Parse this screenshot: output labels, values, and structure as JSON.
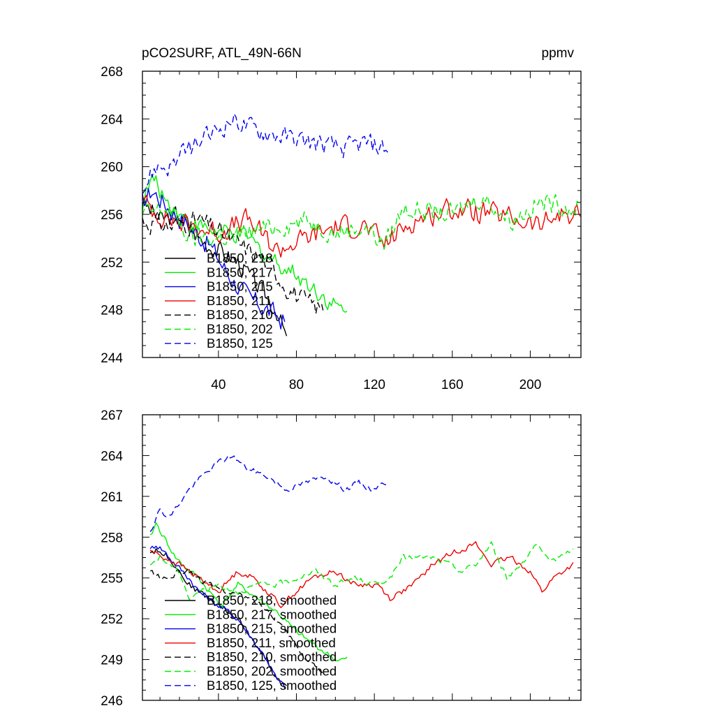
{
  "chart_data": [
    {
      "type": "line",
      "title": "pCO2SURF, ATL_49N-66N",
      "units": "ppmv",
      "xlabel": "",
      "ylabel": "",
      "xlim": [
        1,
        226
      ],
      "ylim": [
        244,
        268
      ],
      "xticks": [
        40,
        80,
        120,
        160,
        200
      ],
      "xtick_labels": [
        "40",
        "80",
        "120",
        "160",
        "200"
      ],
      "yticks": [
        244,
        248,
        252,
        256,
        260,
        264,
        268
      ],
      "ytick_labels": [
        "244",
        "248",
        "252",
        "256",
        "260",
        "264",
        "268"
      ],
      "legend_position": "lower-left",
      "series": [
        {
          "name": "B1850, 218",
          "color": "#000000",
          "dash": "solid",
          "x_end": 75,
          "anchors": [
            [
              1,
              257
            ],
            [
              10,
              255.5
            ],
            [
              20,
              256
            ],
            [
              30,
              254
            ],
            [
              40,
              253
            ],
            [
              50,
              252
            ],
            [
              60,
              250
            ],
            [
              70,
              248
            ],
            [
              75,
              245.5
            ]
          ],
          "noise": 1.2
        },
        {
          "name": "B1850, 217",
          "color": "#00ee00",
          "dash": "solid",
          "x_end": 106,
          "anchors": [
            [
              1,
              257
            ],
            [
              6,
              259
            ],
            [
              12,
              257.5
            ],
            [
              20,
              256
            ],
            [
              30,
              255
            ],
            [
              40,
              254.5
            ],
            [
              55,
              254
            ],
            [
              65,
              252.5
            ],
            [
              80,
              251
            ],
            [
              95,
              249
            ],
            [
              106,
              247.5
            ]
          ],
          "noise": 1.1
        },
        {
          "name": "B1850, 215",
          "color": "#0000ee",
          "dash": "solid",
          "x_end": 74,
          "anchors": [
            [
              1,
              257
            ],
            [
              6,
              258
            ],
            [
              15,
              256.5
            ],
            [
              25,
              255
            ],
            [
              35,
              253.5
            ],
            [
              45,
              251
            ],
            [
              55,
              249
            ],
            [
              65,
              248
            ],
            [
              74,
              247
            ]
          ],
          "noise": 1.3
        },
        {
          "name": "B1850, 211",
          "color": "#ee0000",
          "dash": "solid",
          "x_end": 226,
          "anchors": [
            [
              1,
              257
            ],
            [
              10,
              256
            ],
            [
              25,
              255
            ],
            [
              40,
              254.5
            ],
            [
              55,
              255.5
            ],
            [
              70,
              253
            ],
            [
              85,
              254
            ],
            [
              100,
              255
            ],
            [
              115,
              255
            ],
            [
              125,
              253.5
            ],
            [
              140,
              255.5
            ],
            [
              160,
              256.5
            ],
            [
              180,
              256
            ],
            [
              195,
              255.5
            ],
            [
              205,
              255
            ],
            [
              215,
              256
            ],
            [
              226,
              256
            ]
          ],
          "noise": 1.3
        },
        {
          "name": "B1850, 210",
          "color": "#000000",
          "dash": "dash",
          "x_end": 94,
          "anchors": [
            [
              1,
              255.5
            ],
            [
              15,
              255
            ],
            [
              30,
              255.5
            ],
            [
              45,
              254
            ],
            [
              55,
              253
            ],
            [
              65,
              252
            ],
            [
              75,
              250
            ],
            [
              85,
              248.5
            ],
            [
              94,
              248
            ]
          ],
          "noise": 1.3
        },
        {
          "name": "B1850, 202",
          "color": "#00ee00",
          "dash": "dash",
          "x_end": 226,
          "anchors": [
            [
              1,
              256
            ],
            [
              15,
              256.5
            ],
            [
              25,
              254
            ],
            [
              40,
              254
            ],
            [
              55,
              254.5
            ],
            [
              70,
              255
            ],
            [
              85,
              255.5
            ],
            [
              100,
              254.5
            ],
            [
              115,
              255
            ],
            [
              125,
              253.5
            ],
            [
              135,
              256.5
            ],
            [
              160,
              256
            ],
            [
              175,
              257.5
            ],
            [
              190,
              255.5
            ],
            [
              205,
              257
            ],
            [
              226,
              256.5
            ]
          ],
          "noise": 1.2
        },
        {
          "name": "B1850, 125",
          "color": "#0000ee",
          "dash": "dash",
          "x_end": 127,
          "anchors": [
            [
              1,
              258
            ],
            [
              8,
              260
            ],
            [
              15,
              260
            ],
            [
              25,
              261.5
            ],
            [
              35,
              262.5
            ],
            [
              47,
              264
            ],
            [
              60,
              263
            ],
            [
              75,
              262.5
            ],
            [
              90,
              262
            ],
            [
              105,
              261.5
            ],
            [
              115,
              262
            ],
            [
              127,
              261.5
            ]
          ],
          "noise": 1.2
        }
      ]
    },
    {
      "type": "line",
      "title": "",
      "xlabel": "",
      "ylabel": "",
      "xlim": [
        1,
        226
      ],
      "ylim": [
        246,
        267
      ],
      "xticks": [
        40,
        80,
        120,
        160,
        200
      ],
      "xtick_labels": [
        "",
        "",
        "",
        "",
        ""
      ],
      "yticks": [
        246,
        249,
        252,
        255,
        258,
        261,
        264,
        267
      ],
      "ytick_labels": [
        "246",
        "249",
        "252",
        "255",
        "258",
        "261",
        "264",
        "267"
      ],
      "legend_position": "lower-left",
      "series": [
        {
          "name": "B1850, 218, smoothed",
          "color": "#000000",
          "dash": "solid",
          "x_end": 75,
          "anchors": [
            [
              5,
              257
            ],
            [
              10,
              257
            ],
            [
              15,
              256.5
            ],
            [
              20,
              255.5
            ],
            [
              25,
              254.5
            ],
            [
              30,
              254
            ],
            [
              35,
              253.5
            ],
            [
              40,
              253
            ],
            [
              45,
              252.5
            ],
            [
              50,
              252
            ],
            [
              55,
              251
            ],
            [
              60,
              250
            ],
            [
              65,
              249
            ],
            [
              70,
              247.5
            ],
            [
              75,
              247
            ]
          ],
          "noise": 0.35
        },
        {
          "name": "B1850, 217, smoothed",
          "color": "#00ee00",
          "dash": "solid",
          "x_end": 106,
          "anchors": [
            [
              5,
              258
            ],
            [
              8,
              259
            ],
            [
              12,
              258
            ],
            [
              18,
              256.5
            ],
            [
              25,
              255.5
            ],
            [
              30,
              255
            ],
            [
              35,
              254
            ],
            [
              42,
              253
            ],
            [
              50,
              254.5
            ],
            [
              55,
              254
            ],
            [
              60,
              253.5
            ],
            [
              70,
              252.5
            ],
            [
              80,
              251
            ],
            [
              90,
              250
            ],
            [
              100,
              249
            ],
            [
              106,
              249
            ]
          ],
          "noise": 0.3
        },
        {
          "name": "B1850, 215, smoothed",
          "color": "#0000ee",
          "dash": "solid",
          "x_end": 74,
          "anchors": [
            [
              5,
              257
            ],
            [
              8,
              257.5
            ],
            [
              12,
              257
            ],
            [
              18,
              256
            ],
            [
              25,
              255
            ],
            [
              30,
              254
            ],
            [
              35,
              253.5
            ],
            [
              40,
              253
            ],
            [
              45,
              252.5
            ],
            [
              50,
              252
            ],
            [
              55,
              251
            ],
            [
              60,
              250
            ],
            [
              65,
              249
            ],
            [
              70,
              247.5
            ],
            [
              74,
              247
            ]
          ],
          "noise": 0.35
        },
        {
          "name": "B1850, 211, smoothed",
          "color": "#ee0000",
          "dash": "solid",
          "x_end": 222,
          "anchors": [
            [
              5,
              257
            ],
            [
              12,
              256.5
            ],
            [
              20,
              256
            ],
            [
              30,
              255
            ],
            [
              40,
              254
            ],
            [
              50,
              255.5
            ],
            [
              58,
              255
            ],
            [
              65,
              254
            ],
            [
              72,
              253
            ],
            [
              80,
              254
            ],
            [
              88,
              255
            ],
            [
              100,
              255.5
            ],
            [
              110,
              254.5
            ],
            [
              122,
              254.5
            ],
            [
              128,
              253.5
            ],
            [
              140,
              254.5
            ],
            [
              150,
              256
            ],
            [
              162,
              257
            ],
            [
              172,
              257.5
            ],
            [
              180,
              256
            ],
            [
              190,
              256.5
            ],
            [
              200,
              255.5
            ],
            [
              206,
              254
            ],
            [
              212,
              255
            ],
            [
              222,
              256
            ]
          ],
          "noise": 0.3
        },
        {
          "name": "B1850, 210, smoothed",
          "color": "#000000",
          "dash": "dash",
          "x_end": 94,
          "anchors": [
            [
              5,
              255.5
            ],
            [
              10,
              255
            ],
            [
              15,
              255
            ],
            [
              20,
              255.5
            ],
            [
              25,
              255.5
            ],
            [
              30,
              255
            ],
            [
              35,
              254.5
            ],
            [
              45,
              254
            ],
            [
              55,
              253.5
            ],
            [
              62,
              253
            ],
            [
              70,
              252
            ],
            [
              78,
              250.5
            ],
            [
              85,
              249
            ],
            [
              94,
              248
            ]
          ],
          "noise": 0.3
        },
        {
          "name": "B1850, 202, smoothed",
          "color": "#00ee00",
          "dash": "dash",
          "x_end": 222,
          "anchors": [
            [
              5,
              256
            ],
            [
              10,
              256.5
            ],
            [
              15,
              256
            ],
            [
              20,
              255.5
            ],
            [
              25,
              253.5
            ],
            [
              30,
              254
            ],
            [
              40,
              254.5
            ],
            [
              50,
              254
            ],
            [
              60,
              254.5
            ],
            [
              70,
              254.5
            ],
            [
              80,
              255
            ],
            [
              90,
              255.5
            ],
            [
              100,
              254.5
            ],
            [
              110,
              255
            ],
            [
              120,
              254.5
            ],
            [
              128,
              255
            ],
            [
              135,
              256.5
            ],
            [
              150,
              256.5
            ],
            [
              158,
              256
            ],
            [
              165,
              255.5
            ],
            [
              172,
              256
            ],
            [
              180,
              257.5
            ],
            [
              188,
              255
            ],
            [
              195,
              256
            ],
            [
              203,
              257.5
            ],
            [
              210,
              256
            ],
            [
              218,
              257
            ],
            [
              222,
              257
            ]
          ],
          "noise": 0.3
        },
        {
          "name": "B1850, 125, smoothed",
          "color": "#0000ee",
          "dash": "dash",
          "x_end": 126,
          "anchors": [
            [
              5,
              258.5
            ],
            [
              10,
              260
            ],
            [
              15,
              259.5
            ],
            [
              20,
              260.5
            ],
            [
              25,
              261.5
            ],
            [
              32,
              262.5
            ],
            [
              40,
              263.5
            ],
            [
              47,
              264
            ],
            [
              55,
              263
            ],
            [
              65,
              262.5
            ],
            [
              75,
              261.5
            ],
            [
              85,
              262
            ],
            [
              95,
              262.5
            ],
            [
              105,
              261.5
            ],
            [
              112,
              262
            ],
            [
              118,
              261.5
            ],
            [
              126,
              262
            ]
          ],
          "noise": 0.3
        }
      ]
    }
  ]
}
